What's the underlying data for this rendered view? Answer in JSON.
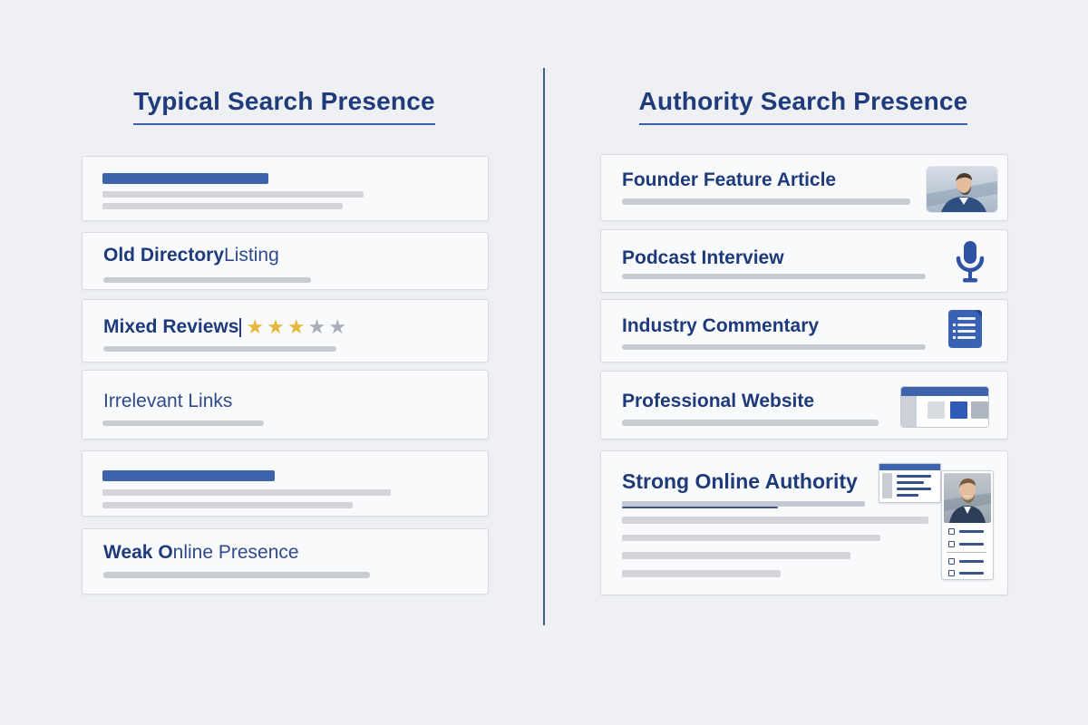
{
  "header": {
    "left_title": "Typical Search Presence",
    "right_title": "Authority Search Presence"
  },
  "left_column": {
    "cards": [
      {
        "type": "skeleton-result"
      },
      {
        "type": "titled-result",
        "title_bold": "Old Directory",
        "title_regular": " Listing"
      },
      {
        "type": "review-result",
        "title_bold": "Mixed Reviews",
        "rating": {
          "filled": 3,
          "total": 5
        }
      },
      {
        "type": "titled-result",
        "title_bold": "",
        "title_regular": "Irrelevant Links"
      },
      {
        "type": "skeleton-result"
      },
      {
        "type": "titled-result",
        "title_bold": "Weak O",
        "title_regular": "nline Presence"
      }
    ]
  },
  "right_column": {
    "cards": [
      {
        "title": "Founder Feature Article",
        "icon": "founder-photo"
      },
      {
        "title": "Podcast Interview",
        "icon": "microphone"
      },
      {
        "title": "Industry Commentary",
        "icon": "document"
      },
      {
        "title": "Professional Website",
        "icon": "browser-window"
      },
      {
        "title": "Strong Online Authority",
        "icon": "profile-collage"
      }
    ]
  },
  "colors": {
    "page_background": "#eef0f3",
    "card_background": "#f9fafb",
    "card_border": "#d9dbdf",
    "heading_navy": "#1f3b7c",
    "accent_blue": "#3f64ae",
    "icon_blue": "#2e53a4",
    "skeleton_gray": "#d3d5da",
    "star_gold": "#e9b73f",
    "star_gray": "#a9aeb7",
    "divider": "#4a5b84"
  }
}
